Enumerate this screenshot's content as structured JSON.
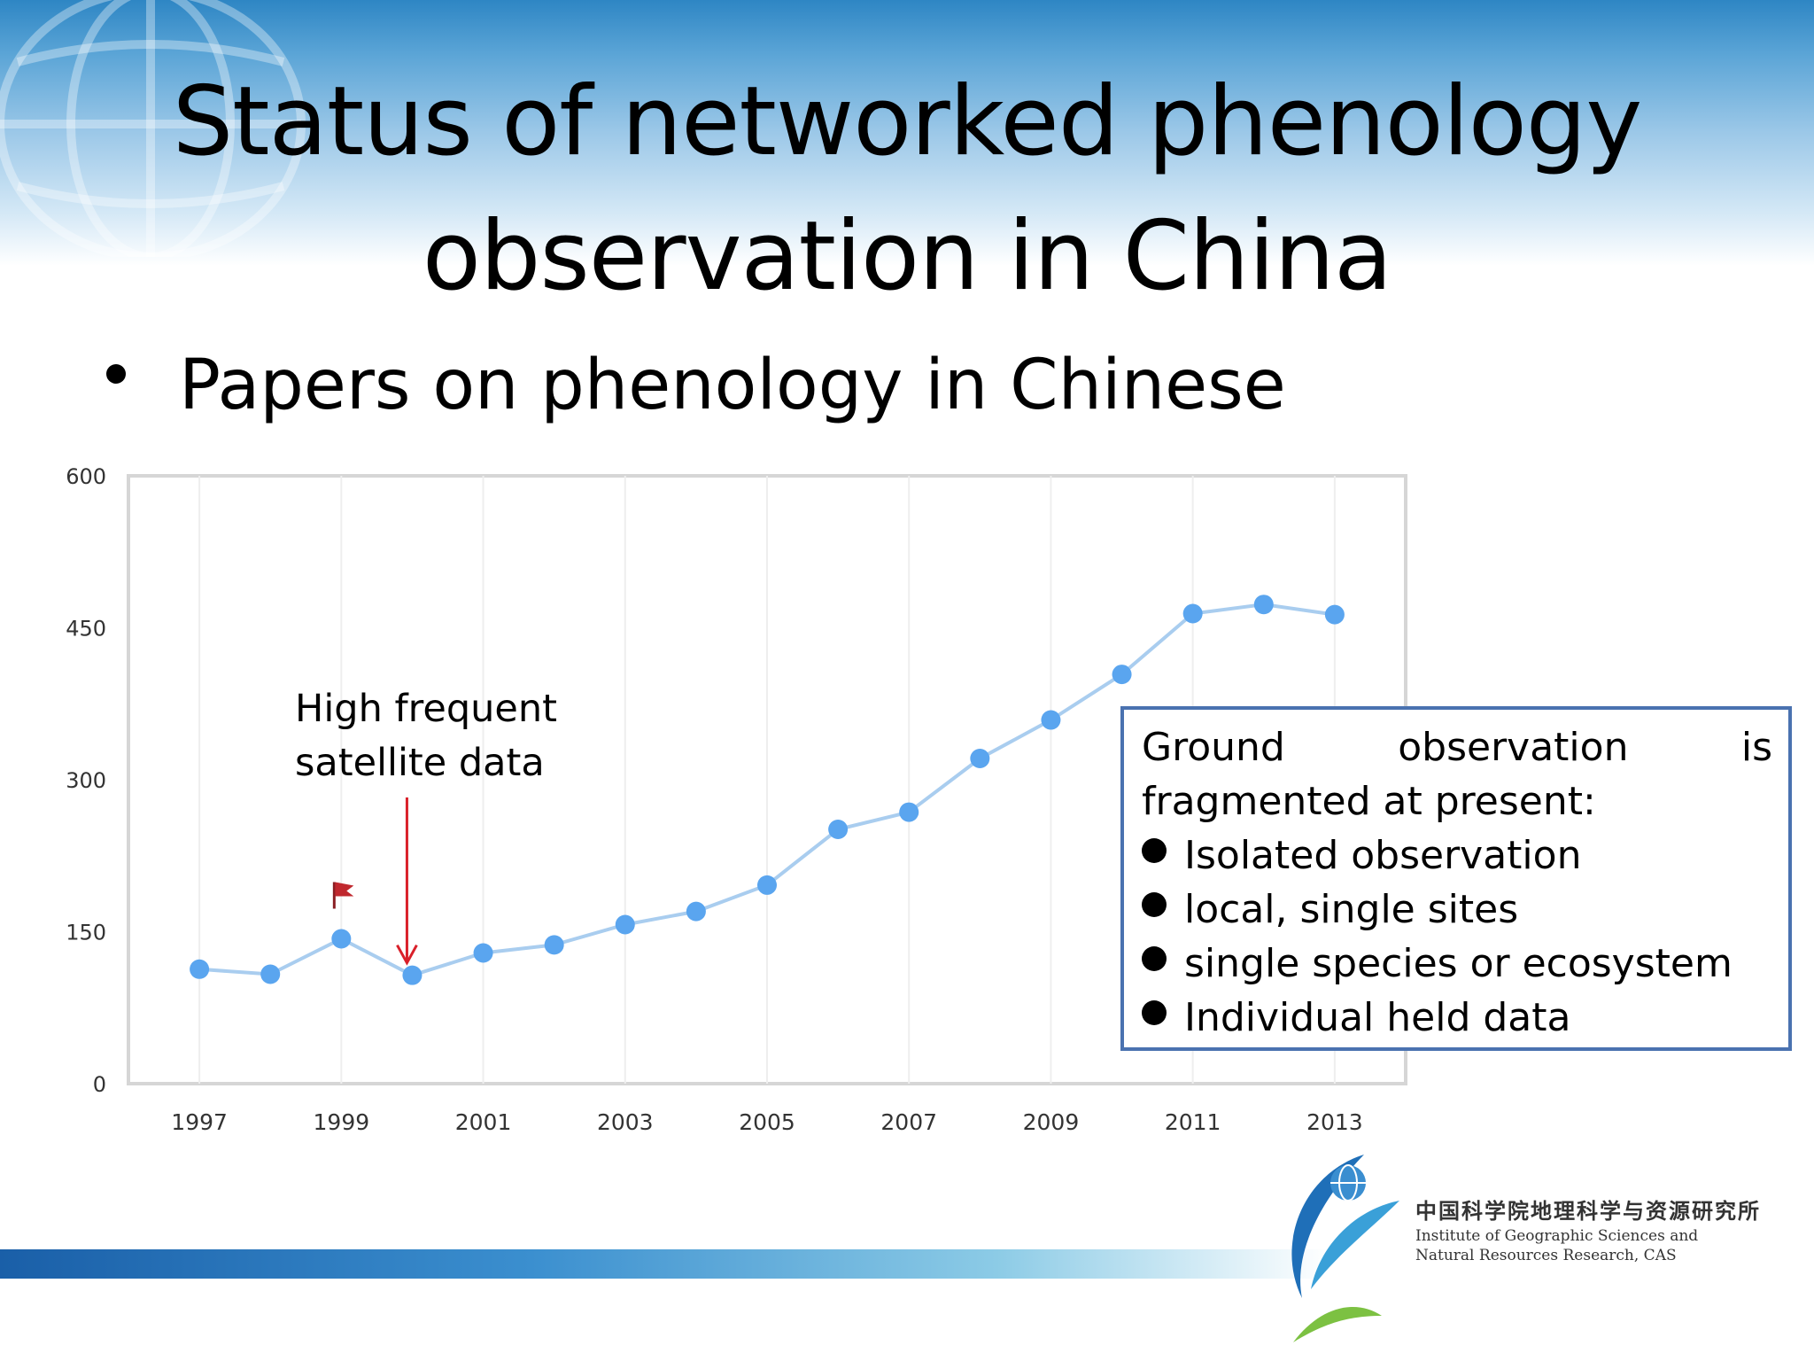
{
  "slide": {
    "title_line1": "Status of networked phenology",
    "title_line2": "observation in China",
    "bullet": "Papers on phenology in Chinese"
  },
  "annotation": {
    "line1": "High frequent",
    "line2": "satellite data"
  },
  "callout": {
    "head_words": [
      "Ground",
      "observation",
      "is"
    ],
    "line2": "fragmented at present:",
    "items": [
      "Isolated observation",
      "local, single sites",
      "single species or ecosystem",
      "Individual held data"
    ]
  },
  "logo": {
    "cn": "中国科学院地理科学与资源研究所",
    "en_line1": "Institute of Geographic Sciences and",
    "en_line2": "Natural Resources Research, CAS"
  },
  "chart_data": {
    "type": "line",
    "title": "",
    "xlabel": "",
    "ylabel": "",
    "x": [
      1997,
      1998,
      1999,
      2000,
      2001,
      2002,
      2003,
      2004,
      2005,
      2006,
      2007,
      2008,
      2009,
      2010,
      2011,
      2012,
      2013
    ],
    "values": [
      113,
      108,
      143,
      107,
      129,
      137,
      157,
      170,
      196,
      251,
      268,
      321,
      359,
      404,
      464,
      473,
      463
    ],
    "x_tick_labels": [
      "1997",
      "1999",
      "2001",
      "2003",
      "2005",
      "2007",
      "2009",
      "2011",
      "2013"
    ],
    "y_tick_labels": [
      "0",
      "150",
      "300",
      "450",
      "600"
    ],
    "ylim": [
      0,
      600
    ],
    "xlim": [
      1996,
      2014
    ],
    "grid": true,
    "legend": "none",
    "colors": {
      "line": "#a9cdef",
      "point": "#5aa5ef",
      "arrow": "#d9202a",
      "flag": "#c0282e"
    },
    "flag_marker_x": 1999,
    "arrow_target_x": 2000
  }
}
